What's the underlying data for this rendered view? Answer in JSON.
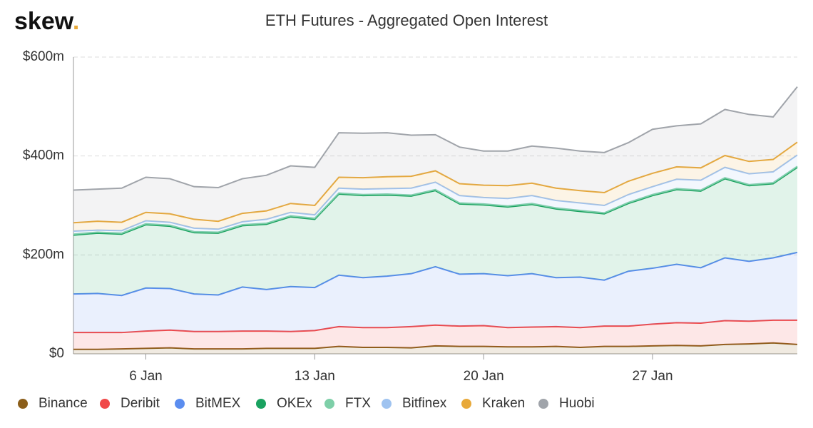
{
  "brand": {
    "name": "skew",
    "dot": "."
  },
  "chart_data": {
    "type": "stacked-area",
    "title": "ETH Futures - Aggregated Open Interest",
    "categories": [
      null,
      null,
      null,
      "6 Jan",
      null,
      null,
      null,
      null,
      null,
      null,
      "13 Jan",
      null,
      null,
      null,
      null,
      null,
      null,
      "20 Jan",
      null,
      null,
      null,
      null,
      null,
      null,
      "27 Jan",
      null,
      null,
      null,
      null,
      null,
      null
    ],
    "ylim": [
      0,
      600
    ],
    "yticks": [
      {
        "value": 0,
        "label": "$0"
      },
      {
        "value": 200,
        "label": "$200m"
      },
      {
        "value": 400,
        "label": "$400m"
      },
      {
        "value": 600,
        "label": "$600m"
      }
    ],
    "grid": true,
    "legend": "bottom",
    "series": [
      {
        "name": "Binance",
        "color": "#8b5e1a",
        "values": [
          9,
          9,
          10,
          11,
          12,
          10,
          10,
          10,
          11,
          11,
          11,
          15,
          13,
          13,
          12,
          16,
          15,
          15,
          14,
          14,
          15,
          13,
          15,
          15,
          16,
          17,
          16,
          19,
          20,
          22,
          19
        ]
      },
      {
        "name": "Deribit",
        "color": "#f04848",
        "values": [
          34,
          34,
          33,
          35,
          36,
          35,
          35,
          36,
          35,
          34,
          36,
          40,
          40,
          40,
          43,
          42,
          41,
          42,
          39,
          40,
          40,
          40,
          41,
          41,
          44,
          46,
          46,
          48,
          46,
          46,
          49
        ]
      },
      {
        "name": "BitMEX",
        "color": "#5b8def",
        "values": [
          78,
          79,
          75,
          87,
          84,
          76,
          74,
          89,
          84,
          91,
          87,
          104,
          101,
          104,
          107,
          118,
          105,
          105,
          105,
          108,
          99,
          102,
          93,
          111,
          113,
          118,
          112,
          127,
          121,
          126,
          137
        ]
      },
      {
        "name": "OKEx",
        "color": "#1aa260",
        "values": [
          119,
          122,
          124,
          128,
          126,
          124,
          125,
          124,
          132,
          141,
          138,
          164,
          166,
          164,
          157,
          154,
          142,
          139,
          139,
          140,
          139,
          133,
          134,
          137,
          147,
          151,
          155,
          160,
          153,
          150,
          172
        ]
      },
      {
        "name": "FTX",
        "color": "#7ecfa8",
        "values": [
          2,
          2,
          2,
          2,
          2,
          2,
          2,
          2,
          2,
          2,
          2,
          2,
          2,
          2,
          2,
          2,
          2,
          2,
          2,
          2,
          2,
          2,
          2,
          2,
          2,
          2,
          2,
          2,
          2,
          2,
          2
        ]
      },
      {
        "name": "Bitfinex",
        "color": "#9fc3f0",
        "values": [
          6,
          4,
          5,
          6,
          6,
          7,
          6,
          6,
          8,
          7,
          7,
          10,
          11,
          11,
          14,
          15,
          15,
          13,
          15,
          16,
          15,
          15,
          15,
          16,
          16,
          19,
          20,
          21,
          22,
          22,
          23
        ]
      },
      {
        "name": "Kraken",
        "color": "#e8a93a",
        "values": [
          17,
          18,
          17,
          17,
          17,
          18,
          16,
          17,
          17,
          18,
          19,
          22,
          23,
          24,
          24,
          23,
          24,
          25,
          26,
          25,
          25,
          25,
          26,
          27,
          27,
          25,
          25,
          24,
          25,
          25,
          26
        ]
      },
      {
        "name": "Huobi",
        "color": "#a0a4aa",
        "values": [
          66,
          65,
          69,
          71,
          71,
          66,
          68,
          70,
          72,
          76,
          77,
          90,
          90,
          89,
          83,
          73,
          74,
          69,
          70,
          75,
          81,
          80,
          81,
          78,
          89,
          83,
          89,
          93,
          95,
          86,
          112
        ]
      }
    ]
  }
}
